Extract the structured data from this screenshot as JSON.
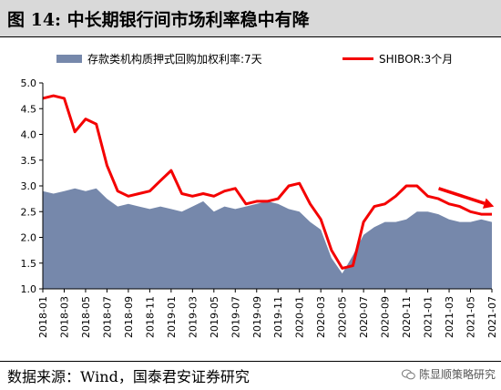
{
  "figure": {
    "title": "图 14:  中长期银行间市场利率稳中有降",
    "source": "数据来源：Wind，国泰君安证券研究",
    "watermark": "陈显顺策略研究"
  },
  "colors": {
    "area": "#7688ab",
    "line": "#f40000",
    "arrow": "#f40000",
    "title_bg": "#d9d9d9"
  },
  "chart_data": {
    "type": "area",
    "ylim": [
      1.0,
      5.0
    ],
    "yticks": [
      "1.0",
      "1.5",
      "2.0",
      "2.5",
      "3.0",
      "3.5",
      "4.0",
      "4.5",
      "5.0"
    ],
    "xticks": [
      "2018-01",
      "2018-03",
      "2018-05",
      "2018-07",
      "2018-09",
      "2018-11",
      "2019-01",
      "2019-03",
      "2019-05",
      "2019-07",
      "2019-09",
      "2019-11",
      "2020-01",
      "2020-03",
      "2020-05",
      "2020-07",
      "2020-09",
      "2020-11",
      "2021-01",
      "2021-03",
      "2021-05",
      "2021-07"
    ],
    "legend_position": "top",
    "grid": false,
    "series": [
      {
        "name": "存款类机构质押式回购加权利率:7天",
        "type": "area",
        "x": [
          "2018-01",
          "2018-02",
          "2018-03",
          "2018-04",
          "2018-05",
          "2018-06",
          "2018-07",
          "2018-08",
          "2018-09",
          "2018-10",
          "2018-11",
          "2018-12",
          "2019-01",
          "2019-02",
          "2019-03",
          "2019-04",
          "2019-05",
          "2019-06",
          "2019-07",
          "2019-08",
          "2019-09",
          "2019-10",
          "2019-11",
          "2019-12",
          "2020-01",
          "2020-02",
          "2020-03",
          "2020-04",
          "2020-05",
          "2020-06",
          "2020-07",
          "2020-08",
          "2020-09",
          "2020-10",
          "2020-11",
          "2020-12",
          "2021-01",
          "2021-02",
          "2021-03",
          "2021-04",
          "2021-05",
          "2021-06",
          "2021-07"
        ],
        "values": [
          2.9,
          2.85,
          2.9,
          2.95,
          2.9,
          2.95,
          2.75,
          2.6,
          2.65,
          2.6,
          2.55,
          2.6,
          2.55,
          2.5,
          2.6,
          2.7,
          2.5,
          2.6,
          2.55,
          2.6,
          2.65,
          2.7,
          2.65,
          2.55,
          2.5,
          2.3,
          2.15,
          1.6,
          1.3,
          1.65,
          2.05,
          2.2,
          2.3,
          2.3,
          2.35,
          2.5,
          2.5,
          2.45,
          2.35,
          2.3,
          2.3,
          2.35,
          2.3
        ]
      },
      {
        "name": "SHIBOR:3个月",
        "type": "line",
        "x": [
          "2018-01",
          "2018-02",
          "2018-03",
          "2018-04",
          "2018-05",
          "2018-06",
          "2018-07",
          "2018-08",
          "2018-09",
          "2018-10",
          "2018-11",
          "2018-12",
          "2019-01",
          "2019-02",
          "2019-03",
          "2019-04",
          "2019-05",
          "2019-06",
          "2019-07",
          "2019-08",
          "2019-09",
          "2019-10",
          "2019-11",
          "2019-12",
          "2020-01",
          "2020-02",
          "2020-03",
          "2020-04",
          "2020-05",
          "2020-06",
          "2020-07",
          "2020-08",
          "2020-09",
          "2020-10",
          "2020-11",
          "2020-12",
          "2021-01",
          "2021-02",
          "2021-03",
          "2021-04",
          "2021-05",
          "2021-06",
          "2021-07"
        ],
        "values": [
          4.7,
          4.75,
          4.7,
          4.05,
          4.3,
          4.2,
          3.4,
          2.9,
          2.8,
          2.85,
          2.9,
          3.1,
          3.3,
          2.85,
          2.8,
          2.85,
          2.8,
          2.9,
          2.95,
          2.65,
          2.7,
          2.7,
          2.75,
          3.0,
          3.05,
          2.65,
          2.35,
          1.75,
          1.4,
          1.45,
          2.3,
          2.6,
          2.65,
          2.8,
          3.0,
          3.0,
          2.8,
          2.75,
          2.65,
          2.6,
          2.5,
          2.45,
          2.45
        ]
      }
    ],
    "annotations": [
      {
        "type": "arrow",
        "from": [
          "2021-01",
          2.95
        ],
        "to": [
          "2021-06",
          2.6
        ]
      }
    ]
  }
}
